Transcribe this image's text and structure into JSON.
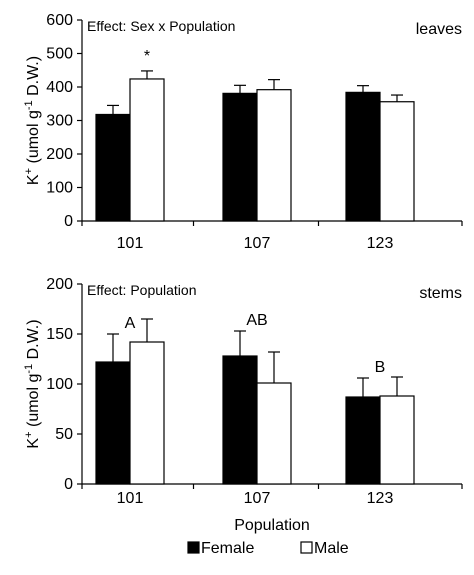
{
  "figure": {
    "xlabel": "Population",
    "legend": [
      {
        "label": "Female",
        "color": "#000000"
      },
      {
        "label": "Male",
        "color": "#ffffff"
      }
    ]
  },
  "chart_data": [
    {
      "type": "bar",
      "panel": "leaves",
      "effect": "Effect: Sex x Population",
      "ylabel": "K+ (umol g-1 D.W.)",
      "ylim": [
        0,
        600
      ],
      "yticks": [
        0,
        100,
        200,
        300,
        400,
        500,
        600
      ],
      "categories": [
        "101",
        "107",
        "123"
      ],
      "series": [
        {
          "name": "Female",
          "color": "#000000",
          "values": [
            318,
            381,
            384
          ],
          "errors": [
            27,
            24,
            20
          ]
        },
        {
          "name": "Male",
          "color": "#ffffff",
          "values": [
            424,
            392,
            356
          ],
          "errors": [
            24,
            30,
            20
          ]
        }
      ],
      "annotations": [
        {
          "category": "101",
          "series": "Male",
          "text": "*"
        }
      ]
    },
    {
      "type": "bar",
      "panel": "stems",
      "effect": "Effect: Population",
      "ylabel": "K+ (umol g-1 D.W.)",
      "ylim": [
        0,
        200
      ],
      "yticks": [
        0,
        50,
        100,
        150,
        200
      ],
      "categories": [
        "101",
        "107",
        "123"
      ],
      "series": [
        {
          "name": "Female",
          "color": "#000000",
          "values": [
            122,
            128,
            87
          ],
          "errors": [
            28,
            25,
            19
          ]
        },
        {
          "name": "Male",
          "color": "#ffffff",
          "values": [
            142,
            101,
            88
          ],
          "errors": [
            23,
            31,
            19
          ]
        }
      ],
      "annotations": [
        {
          "category": "101",
          "text": "A"
        },
        {
          "category": "107",
          "text": "AB"
        },
        {
          "category": "123",
          "text": "B"
        }
      ]
    }
  ]
}
